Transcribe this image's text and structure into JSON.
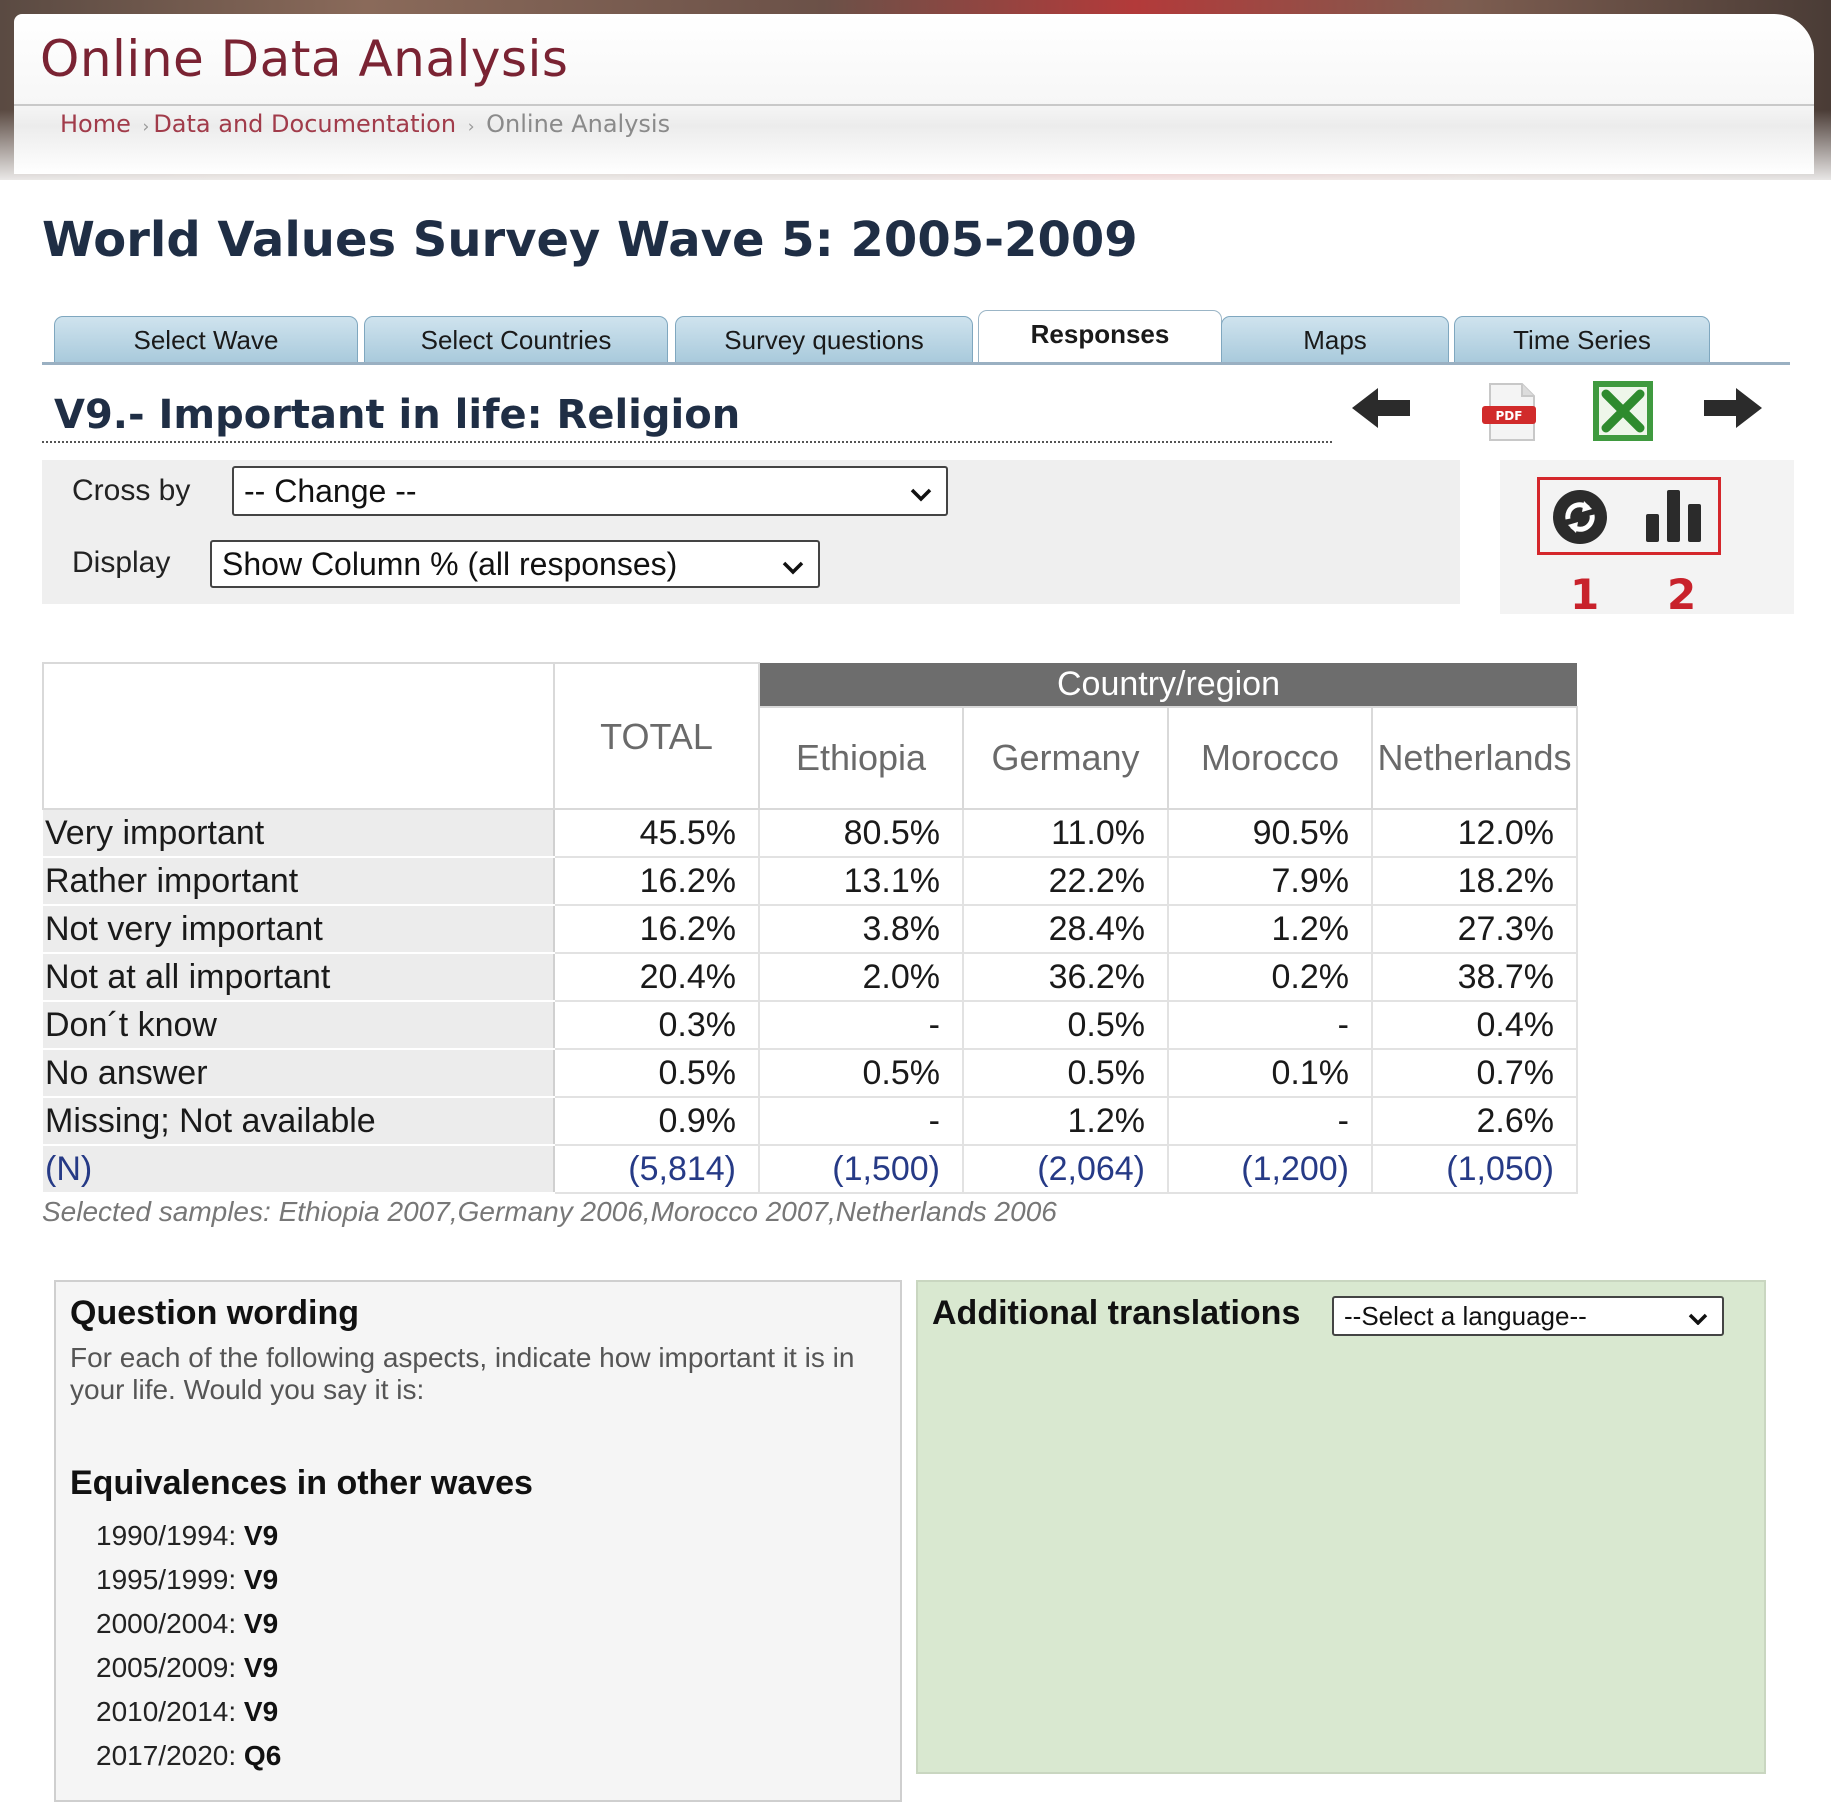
{
  "header": {
    "title": "Online Data Analysis",
    "breadcrumb": [
      "Home",
      "Data and Documentation",
      "Online Analysis"
    ]
  },
  "page_title": "World Values Survey Wave 5: 2005-2009",
  "tabs": [
    {
      "label": "Select Wave",
      "active": false
    },
    {
      "label": "Select Countries",
      "active": false
    },
    {
      "label": "Survey questions",
      "active": false
    },
    {
      "label": "Responses",
      "active": true
    },
    {
      "label": "Maps",
      "active": false
    },
    {
      "label": "Time Series",
      "active": false
    }
  ],
  "question_title": "V9.- Important in life: Religion",
  "toolbar": {
    "icons": [
      "arrow-left-icon",
      "pdf-icon",
      "excel-icon",
      "arrow-right-icon"
    ],
    "pdf_badge": "PDF",
    "action_icons": [
      "refresh-icon",
      "bar-chart-icon"
    ],
    "callout_numbers": [
      "1",
      "2"
    ],
    "accent_red": "#d4262b"
  },
  "controls": {
    "cross_by_label": "Cross by",
    "cross_by_value": "-- Change --",
    "display_label": "Display",
    "display_value": "Show Column % (all responses)"
  },
  "table": {
    "total_label": "TOTAL",
    "group_label": "Country/region",
    "countries": [
      "Ethiopia",
      "Germany",
      "Morocco",
      "Netherlands"
    ],
    "rows": [
      {
        "label": "Very important",
        "values": [
          "45.5%",
          "80.5%",
          "11.0%",
          "90.5%",
          "12.0%"
        ]
      },
      {
        "label": "Rather important",
        "values": [
          "16.2%",
          "13.1%",
          "22.2%",
          "7.9%",
          "18.2%"
        ]
      },
      {
        "label": "Not very important",
        "values": [
          "16.2%",
          "3.8%",
          "28.4%",
          "1.2%",
          "27.3%"
        ]
      },
      {
        "label": "Not at all important",
        "values": [
          "20.4%",
          "2.0%",
          "36.2%",
          "0.2%",
          "38.7%"
        ]
      },
      {
        "label": "Don´t know",
        "values": [
          "0.3%",
          "-",
          "0.5%",
          "-",
          "0.4%"
        ]
      },
      {
        "label": "No answer",
        "values": [
          "0.5%",
          "0.5%",
          "0.5%",
          "0.1%",
          "0.7%"
        ]
      },
      {
        "label": "Missing; Not available",
        "values": [
          "0.9%",
          "-",
          "1.2%",
          "-",
          "2.6%"
        ]
      },
      {
        "label": "(N)",
        "values": [
          "(5,814)",
          "(1,500)",
          "(2,064)",
          "(1,200)",
          "(1,050)"
        ]
      }
    ],
    "samples_note": "Selected samples: Ethiopia 2007,Germany 2006,Morocco 2007,Netherlands 2006"
  },
  "question_wording": {
    "heading": "Question wording",
    "text": "For each of the following aspects, indicate how important it is in your life. Would you say it is:",
    "equivalences_heading": "Equivalences in other waves",
    "equivalences": [
      {
        "period": "1990/1994:",
        "code": "V9"
      },
      {
        "period": "1995/1999:",
        "code": "V9"
      },
      {
        "period": "2000/2004:",
        "code": "V9"
      },
      {
        "period": "2005/2009:",
        "code": "V9"
      },
      {
        "period": "2010/2014:",
        "code": "V9"
      },
      {
        "period": "2017/2020:",
        "code": "Q6"
      }
    ]
  },
  "translations": {
    "heading": "Additional translations",
    "select_value": "--Select a language--"
  }
}
